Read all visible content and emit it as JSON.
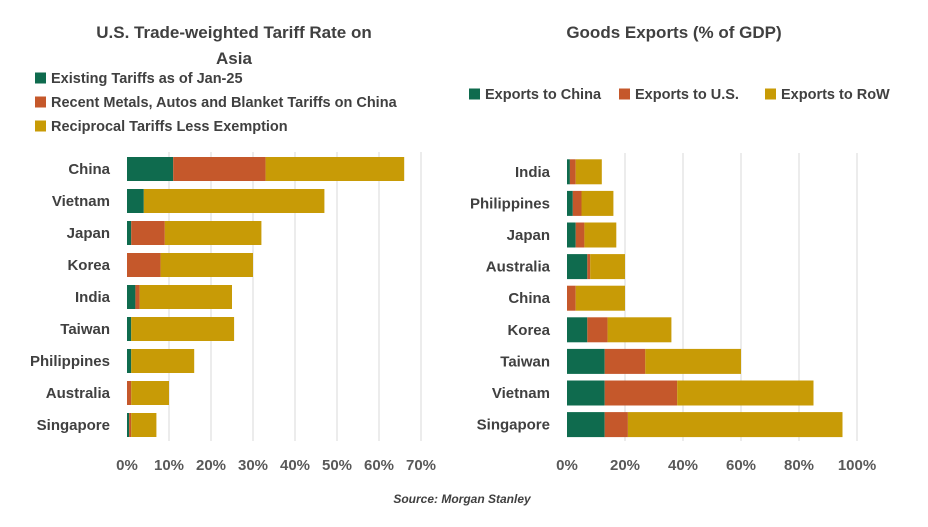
{
  "colors": {
    "green": "#0f6b4e",
    "orange": "#c5582b",
    "gold": "#c89b06"
  },
  "chart_data": [
    {
      "type": "bar",
      "orientation": "horizontal",
      "stacked": true,
      "title": "U.S. Trade-weighted Tariff Rate on Asia",
      "title_lines": [
        "U.S. Trade-weighted Tariff Rate on",
        "Asia"
      ],
      "categories": [
        "China",
        "Vietnam",
        "Japan",
        "Korea",
        "India",
        "Taiwan",
        "Philippines",
        "Australia",
        "Singapore"
      ],
      "series": [
        {
          "name": "Existing Tariffs as of Jan-25",
          "color": "#0f6b4e",
          "values": [
            11,
            4,
            1,
            0,
            2,
            1,
            1,
            0,
            0.5
          ]
        },
        {
          "name": "Recent Metals, Autos and Blanket Tariffs on China",
          "color": "#c5582b",
          "values": [
            22,
            0,
            8,
            8,
            1,
            0,
            0,
            1,
            0.5
          ]
        },
        {
          "name": "Reciprocal Tariffs Less Exemption",
          "color": "#c89b06",
          "values": [
            33,
            43,
            23,
            22,
            22,
            24.5,
            15,
            9,
            6
          ]
        }
      ],
      "legend_position": "top",
      "xlim": [
        0,
        70
      ],
      "xticks": [
        0,
        10,
        20,
        30,
        40,
        50,
        60,
        70
      ],
      "tick_labels": [
        "0%",
        "10%",
        "20%",
        "30%",
        "40%",
        "50%",
        "60%",
        "70%"
      ],
      "grid": true
    },
    {
      "type": "bar",
      "orientation": "horizontal",
      "stacked": true,
      "title": "Goods Exports (% of GDP)",
      "categories": [
        "India",
        "Philippines",
        "Japan",
        "Australia",
        "China",
        "Korea",
        "Taiwan",
        "Vietnam",
        "Singapore"
      ],
      "series": [
        {
          "name": "Exports to China",
          "color": "#0f6b4e",
          "values": [
            1,
            2,
            3,
            7,
            0,
            7,
            13,
            13,
            13
          ]
        },
        {
          "name": "Exports to U.S.",
          "color": "#c5582b",
          "values": [
            2,
            3,
            3,
            1,
            3,
            7,
            14,
            25,
            8
          ]
        },
        {
          "name": "Exports to RoW",
          "color": "#c89b06",
          "values": [
            9,
            11,
            11,
            12,
            17,
            22,
            33,
            47,
            74
          ]
        }
      ],
      "legend_position": "top",
      "xlim": [
        0,
        100
      ],
      "xticks": [
        0,
        20,
        40,
        60,
        80,
        100
      ],
      "tick_labels": [
        "0%",
        "20%",
        "40%",
        "60%",
        "80%",
        "100%"
      ],
      "grid": true
    }
  ],
  "source": "Source: Morgan Stanley"
}
